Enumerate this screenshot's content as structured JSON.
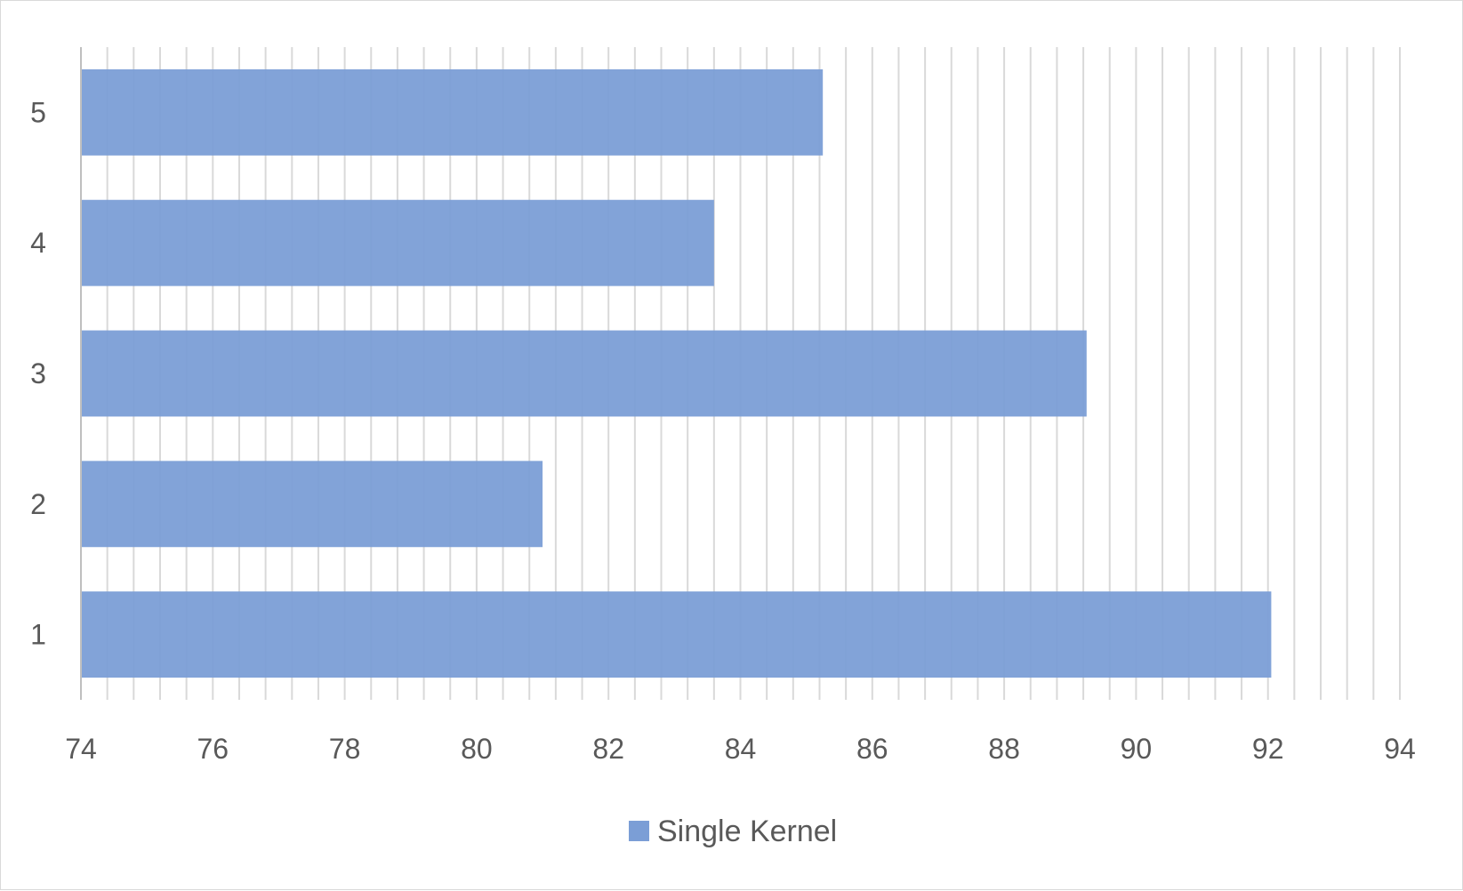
{
  "chart_data": {
    "type": "bar",
    "orientation": "horizontal",
    "categories": [
      "1",
      "2",
      "3",
      "4",
      "5"
    ],
    "series": [
      {
        "name": "Single Kernel",
        "values": [
          92.05,
          81.0,
          89.25,
          83.6,
          85.25
        ],
        "color": "#7b9ed6"
      }
    ],
    "title": "",
    "xlabel": "",
    "ylabel": "",
    "xlim": [
      74,
      94
    ],
    "x_ticks": [
      "74",
      "76",
      "78",
      "80",
      "82",
      "84",
      "86",
      "88",
      "90",
      "92",
      "94"
    ],
    "x_major_step": 2,
    "x_minor_step": 0.4,
    "grid": true,
    "legend_position": "bottom",
    "colors": {
      "gridline": "#d9d9d9",
      "axis": "#bfbfbf",
      "text": "#595959",
      "border": "#d9d9d9"
    }
  }
}
